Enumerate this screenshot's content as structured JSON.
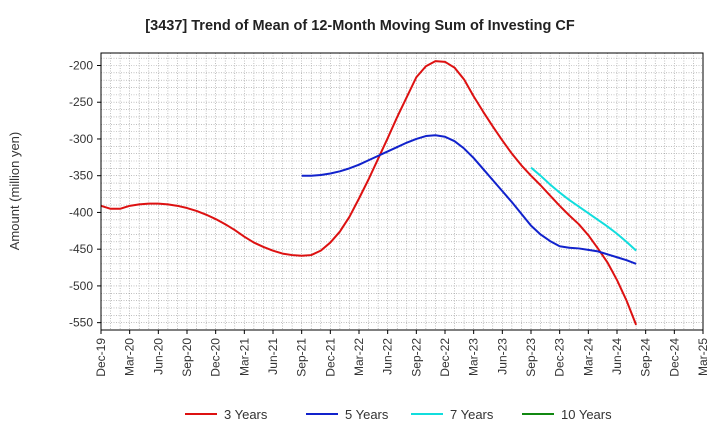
{
  "chart_data": {
    "type": "line",
    "title": "[3437]  Trend of Mean of 12-Month Moving Sum of Investing CF",
    "xlabel": "",
    "ylabel": "Amount (million yen)",
    "ylim": [
      -560,
      -183
    ],
    "yticks": [
      -200,
      -250,
      -300,
      -350,
      -400,
      -450,
      -500,
      -550
    ],
    "grid": true,
    "categories": [
      "Dec-19",
      "Mar-20",
      "Jun-20",
      "Sep-20",
      "Dec-20",
      "Mar-21",
      "Jun-21",
      "Sep-21",
      "Dec-21",
      "Mar-22",
      "Jun-22",
      "Sep-22",
      "Dec-22",
      "Mar-23",
      "Jun-23",
      "Sep-23",
      "Dec-23",
      "Mar-24",
      "Jun-24",
      "Sep-24",
      "Dec-24",
      "Mar-25"
    ],
    "x_range": [
      0,
      63
    ],
    "legend_position": "bottom",
    "series": [
      {
        "name": "3 Years",
        "color": "#dd1111",
        "x": [
          0,
          1,
          2,
          3,
          4,
          5,
          6,
          7,
          8,
          9,
          10,
          11,
          12,
          13,
          14,
          15,
          16,
          17,
          18,
          19,
          20,
          21,
          22,
          23,
          24,
          25,
          26,
          27,
          28,
          29,
          30,
          31,
          32,
          33,
          34,
          35,
          36,
          37,
          38,
          39,
          40,
          41,
          42,
          43,
          44,
          45,
          46,
          47,
          48,
          49,
          50,
          51,
          52,
          53,
          54,
          55,
          56,
          57
        ],
        "values": [
          -391,
          -395,
          -395,
          -391,
          -389,
          -388,
          -388,
          -389,
          -391,
          -394,
          -398,
          -403,
          -409,
          -416,
          -424,
          -433,
          -441,
          -447,
          -452,
          -456,
          -458,
          -459,
          -458,
          -452,
          -441,
          -426,
          -406,
          -381,
          -355,
          -327,
          -299,
          -270,
          -243,
          -216,
          -201,
          -194,
          -195,
          -203,
          -219,
          -242,
          -263,
          -283,
          -302,
          -320,
          -336,
          -350,
          -363,
          -377,
          -391,
          -404,
          -416,
          -431,
          -449,
          -468,
          -492,
          -520,
          -553,
          null
        ]
      },
      {
        "name": "5 Years",
        "color": "#1122cc",
        "x": [
          21,
          22,
          23,
          24,
          25,
          26,
          27,
          28,
          29,
          30,
          31,
          32,
          33,
          34,
          35,
          36,
          37,
          38,
          39,
          40,
          41,
          42,
          43,
          44,
          45,
          46,
          47,
          48,
          49,
          50,
          51,
          52,
          53,
          54,
          55,
          56,
          57
        ],
        "values": [
          -350,
          -350,
          -349,
          -347,
          -344,
          -340,
          -335,
          -329,
          -323,
          -317,
          -311,
          -305,
          -300,
          -296,
          -295,
          -297,
          -303,
          -313,
          -326,
          -341,
          -356,
          -371,
          -386,
          -402,
          -418,
          -430,
          -439,
          -446,
          -448,
          -449,
          -451,
          -453,
          -457,
          -461,
          -465,
          -470,
          null
        ]
      },
      {
        "name": "7 Years",
        "color": "#11dddd",
        "x": [
          45,
          46,
          47,
          48,
          49,
          50,
          51,
          52,
          53,
          54,
          55,
          56,
          57
        ],
        "values": [
          -339,
          -350,
          -362,
          -373,
          -383,
          -392,
          -401,
          -410,
          -419,
          -429,
          -440,
          -452,
          null
        ]
      },
      {
        "name": "10 Years",
        "color": "#118811",
        "x": [],
        "values": []
      }
    ]
  }
}
